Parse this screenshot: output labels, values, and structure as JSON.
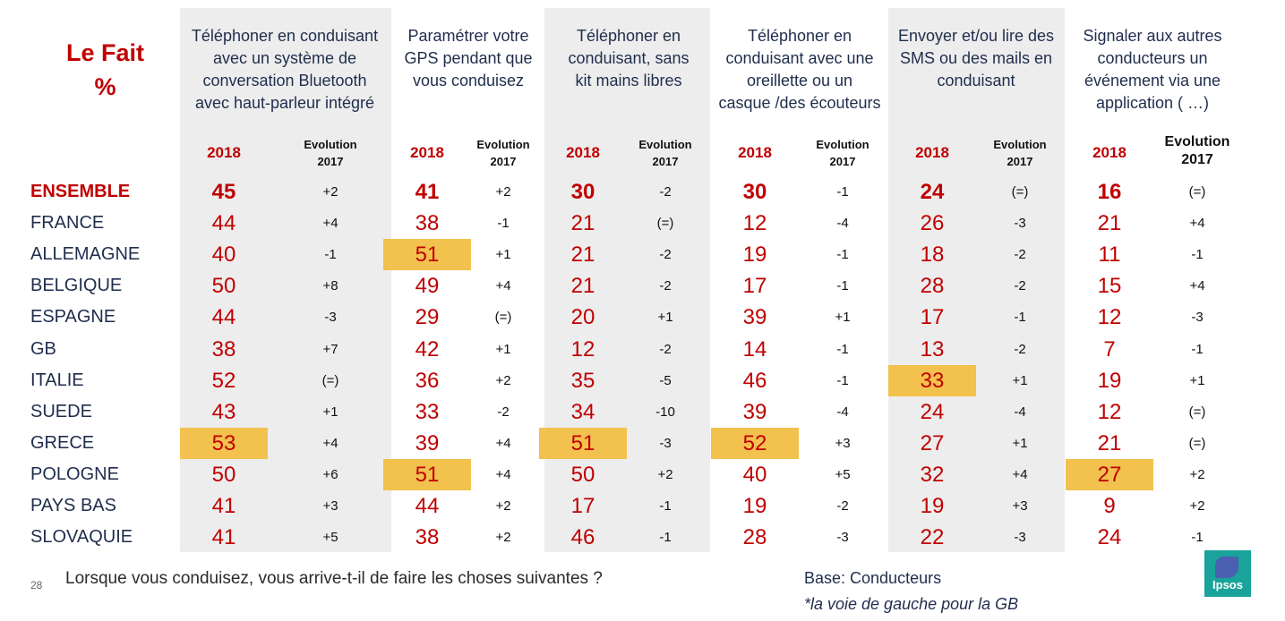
{
  "title_lines": [
    "Le Fait",
    "%"
  ],
  "year_label": "2018",
  "evo_label": [
    "Evolution",
    "2017"
  ],
  "columns": [
    {
      "title_lines": [
        "Téléphoner en conduisant",
        "avec un système de",
        "conversation Bluetooth",
        "avec haut-parleur intégré"
      ]
    },
    {
      "title_lines": [
        "Paramétrer votre",
        "GPS pendant que",
        "vous conduisez"
      ]
    },
    {
      "title_lines": [
        "Téléphoner en",
        "conduisant, sans",
        "kit mains libres"
      ]
    },
    {
      "title_lines": [
        "Téléphoner en",
        "conduisant avec une",
        "oreillette ou un",
        "casque /des écouteurs"
      ]
    },
    {
      "title_lines": [
        "Envoyer et/ou lire des",
        "SMS ou des mails en",
        "conduisant"
      ]
    },
    {
      "title_lines": [
        "Signaler aux autres",
        "conducteurs un",
        "événement via une",
        "application ( …)"
      ]
    }
  ],
  "chart_data": {
    "type": "table",
    "rows": [
      {
        "country": "ENSEMBLE",
        "values": [
          "45",
          "41",
          "30",
          "30",
          "24",
          "16"
        ],
        "evolutions": [
          "+2",
          "+2",
          "-2",
          "-1",
          "(=)",
          "(=)"
        ]
      },
      {
        "country": "FRANCE",
        "values": [
          "44",
          "38",
          "21",
          "12",
          "26",
          "21"
        ],
        "evolutions": [
          "+4",
          "-1",
          "(=)",
          "-4",
          "-3",
          "+4"
        ]
      },
      {
        "country": "ALLEMAGNE",
        "values": [
          "40",
          "51",
          "21",
          "19",
          "18",
          "11"
        ],
        "evolutions": [
          "-1",
          "+1",
          "-2",
          "-1",
          "-2",
          "-1"
        ]
      },
      {
        "country": "BELGIQUE",
        "values": [
          "50",
          "49",
          "21",
          "17",
          "28",
          "15"
        ],
        "evolutions": [
          "+8",
          "+4",
          "-2",
          "-1",
          "-2",
          "+4"
        ]
      },
      {
        "country": "ESPAGNE",
        "values": [
          "44",
          "29",
          "20",
          "39",
          "17",
          "12"
        ],
        "evolutions": [
          "-3",
          "(=)",
          "+1",
          "+1",
          "-1",
          "-3"
        ]
      },
      {
        "country": "GB",
        "values": [
          "38",
          "42",
          "12",
          "14",
          "13",
          "7"
        ],
        "evolutions": [
          "+7",
          "+1",
          "-2",
          "-1",
          "-2",
          "-1"
        ]
      },
      {
        "country": "ITALIE",
        "values": [
          "52",
          "36",
          "35",
          "46",
          "33",
          "19"
        ],
        "evolutions": [
          "(=)",
          "+2",
          "-5",
          "-1",
          "+1",
          "+1"
        ]
      },
      {
        "country": "SUEDE",
        "values": [
          "43",
          "33",
          "34",
          "39",
          "24",
          "12"
        ],
        "evolutions": [
          "+1",
          "-2",
          "-10",
          "-4",
          "-4",
          "(=)"
        ]
      },
      {
        "country": "GRECE",
        "values": [
          "53",
          "39",
          "51",
          "52",
          "27",
          "21"
        ],
        "evolutions": [
          "+4",
          "+4",
          "-3",
          "+3",
          "+1",
          "(=)"
        ]
      },
      {
        "country": "POLOGNE",
        "values": [
          "50",
          "51",
          "50",
          "40",
          "32",
          "27"
        ],
        "evolutions": [
          "+6",
          "+4",
          "+2",
          "+5",
          "+4",
          "+2"
        ]
      },
      {
        "country": "PAYS BAS",
        "values": [
          "41",
          "44",
          "17",
          "19",
          "19",
          "9"
        ],
        "evolutions": [
          "+3",
          "+2",
          "-1",
          "-2",
          "+3",
          "+2"
        ]
      },
      {
        "country": "SLOVAQUIE",
        "values": [
          "41",
          "38",
          "46",
          "28",
          "22",
          "24"
        ],
        "evolutions": [
          "+5",
          "+2",
          "-1",
          "-3",
          "-3",
          "-1"
        ]
      }
    ],
    "highlights": [
      {
        "row": 8,
        "col": 0
      },
      {
        "row": 2,
        "col": 1
      },
      {
        "row": 9,
        "col": 1
      },
      {
        "row": 8,
        "col": 2
      },
      {
        "row": 8,
        "col": 3
      },
      {
        "row": 6,
        "col": 4
      },
      {
        "row": 9,
        "col": 5
      }
    ],
    "highlight_color": "#f2c14e",
    "value_color": "#c00000",
    "band_color": "#ededed"
  },
  "footer": {
    "page_number": "28",
    "question": "Lorsque vous conduisez, vous arrive-t-il de faire les choses suivantes ?",
    "base": "Base: Conducteurs",
    "note": "*la voie de gauche pour la GB"
  },
  "logo_text": "Ipsos"
}
